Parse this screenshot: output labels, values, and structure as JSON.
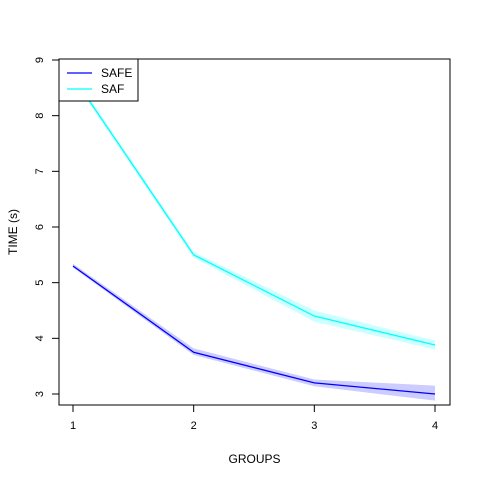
{
  "chart_data": {
    "type": "line",
    "title": "",
    "xlabel": "GROUPS",
    "ylabel": "TIME (s)",
    "x": [
      1,
      2,
      3,
      4
    ],
    "xlim": [
      1,
      4
    ],
    "ylim": [
      3,
      9
    ],
    "xticks": [
      1,
      2,
      3,
      4
    ],
    "yticks": [
      3,
      4,
      5,
      6,
      7,
      8,
      9
    ],
    "grid": false,
    "legend_position": "top-left",
    "series": [
      {
        "name": "SAFE",
        "color": "#0000FF",
        "band_color": "#0000FF",
        "values": [
          5.3,
          3.75,
          3.2,
          3.0
        ],
        "lower": [
          5.27,
          3.7,
          3.14,
          2.88
        ],
        "upper": [
          5.34,
          3.82,
          3.26,
          3.15
        ]
      },
      {
        "name": "SAF",
        "color": "#00FFFF",
        "band_color": "#00FFFF",
        "values": [
          8.7,
          5.5,
          4.4,
          3.88
        ],
        "lower": [
          8.65,
          5.45,
          4.3,
          3.8
        ],
        "upper": [
          8.75,
          5.55,
          4.5,
          3.96
        ]
      }
    ]
  }
}
